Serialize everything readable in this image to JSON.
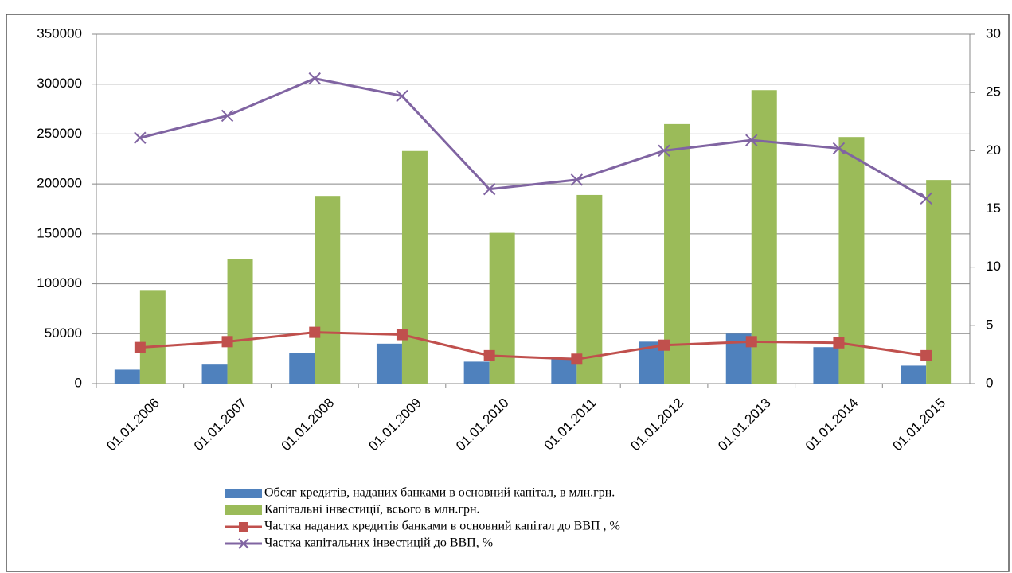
{
  "chart_data": {
    "type": "combo",
    "categories": [
      "01.01.2006",
      "01.01.2007",
      "01.01.2008",
      "01.01.2009",
      "01.01.2010",
      "01.01.2011",
      "01.01.2012",
      "01.01.2013",
      "01.01.2014",
      "01.01.2015"
    ],
    "series": [
      {
        "name": "Обсяг кредитів, наданих банками в основний капітал, в млн.грн.",
        "type": "bar",
        "color": "#4f81bd",
        "values": [
          14000,
          19000,
          31000,
          40000,
          22000,
          26000,
          42000,
          50000,
          36500,
          18000
        ]
      },
      {
        "name": "Капітальні інвестиції, всього в млн.грн.",
        "type": "bar",
        "color": "#9bbb59",
        "values": [
          93000,
          125000,
          188000,
          233000,
          151000,
          189000,
          260000,
          294000,
          247000,
          204000
        ]
      },
      {
        "name": "Частка наданих кредитів банками в основний капітал до ВВП , %",
        "type": "line",
        "axis": "y2",
        "marker": "square",
        "color": "#c0504d",
        "values": [
          3.1,
          3.6,
          4.4,
          4.2,
          2.4,
          2.1,
          3.3,
          3.6,
          3.5,
          2.4
        ]
      },
      {
        "name": "Частка капітальних інвестицій до ВВП, %",
        "type": "line",
        "axis": "y2",
        "marker": "x",
        "color": "#8064a2",
        "values": [
          21.1,
          23.0,
          26.2,
          24.7,
          16.7,
          17.5,
          20.0,
          20.9,
          20.2,
          15.9
        ]
      }
    ],
    "ylim": [
      0,
      350000
    ],
    "yticks": [
      0,
      50000,
      100000,
      150000,
      200000,
      250000,
      300000,
      350000
    ],
    "y2lim": [
      0,
      30
    ],
    "y2ticks": [
      0,
      5,
      10,
      15,
      20,
      25,
      30
    ],
    "grid": true,
    "legend": "bottom"
  }
}
